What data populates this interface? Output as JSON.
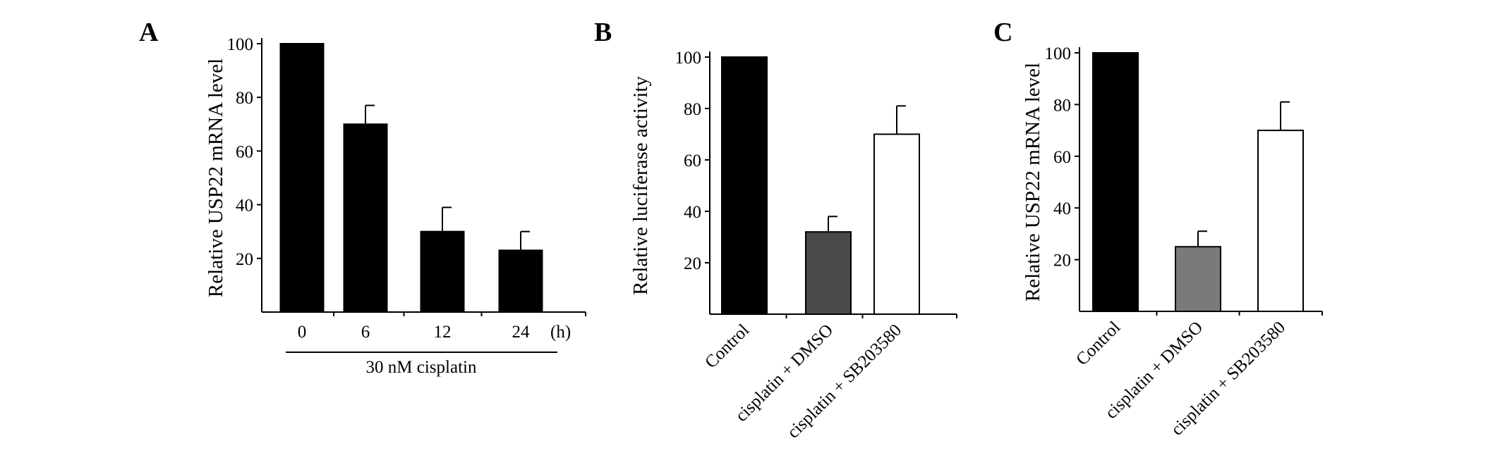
{
  "figure": {
    "panels": [
      {
        "letter": "A"
      },
      {
        "letter": "B"
      },
      {
        "letter": "C"
      }
    ]
  },
  "chart_data": [
    {
      "type": "bar",
      "panel": "A",
      "ylabel": "Relative USP22 mRNA level",
      "categories": [
        "0",
        "6",
        "12",
        "24"
      ],
      "x_unit": "(h)",
      "group_label": "30 nM cisplatin",
      "values": [
        100,
        70,
        30,
        23
      ],
      "errors": [
        0,
        7,
        9,
        7
      ],
      "bar_colors": [
        "#000000",
        "#000000",
        "#000000",
        "#000000"
      ],
      "yticks": [
        20,
        40,
        60,
        80,
        100
      ],
      "ylim": [
        0,
        100
      ]
    },
    {
      "type": "bar",
      "panel": "B",
      "ylabel": "Relative luciferase activity",
      "categories": [
        "Control",
        "cisplatin + DMSO",
        "cisplatin + SB203580"
      ],
      "values": [
        100,
        32,
        70
      ],
      "errors": [
        0,
        6,
        11
      ],
      "bar_colors": [
        "#000000",
        "#4a4a4a",
        "#ffffff"
      ],
      "yticks": [
        20,
        40,
        60,
        80,
        100
      ],
      "ylim": [
        0,
        100
      ]
    },
    {
      "type": "bar",
      "panel": "C",
      "ylabel": "Relative USP22 mRNA level",
      "categories": [
        "Control",
        "cisplatin + DMSO",
        "cisplatin + SB203580"
      ],
      "values": [
        100,
        25,
        70
      ],
      "errors": [
        0,
        6,
        11
      ],
      "bar_colors": [
        "#000000",
        "#7a7a7a",
        "#ffffff"
      ],
      "yticks": [
        20,
        40,
        60,
        80,
        100
      ],
      "ylim": [
        0,
        100
      ]
    }
  ]
}
